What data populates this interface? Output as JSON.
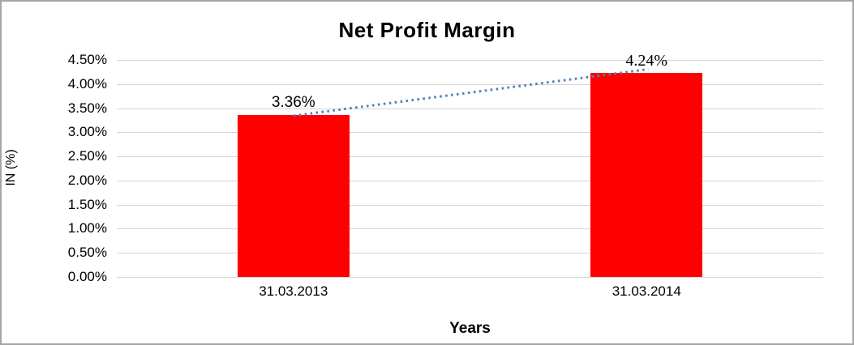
{
  "chart_data": {
    "type": "bar",
    "title": "Net Profit Margin",
    "categories": [
      "31.03.2013",
      "31.03.2014"
    ],
    "values": [
      3.36,
      4.24
    ],
    "value_labels": [
      "3.36%",
      "4.24%"
    ],
    "series": [
      {
        "name": "Net Profit Margin",
        "values": [
          3.36,
          4.24
        ]
      }
    ],
    "xlabel": "Years",
    "ylabel": "IN (%)",
    "ylim": [
      0,
      4.5
    ],
    "ytick_step": 0.5,
    "ytick_labels": [
      "0.00%",
      "0.50%",
      "1.00%",
      "1.50%",
      "2.00%",
      "2.50%",
      "3.00%",
      "3.50%",
      "4.00%",
      "4.50%"
    ],
    "grid": true,
    "legend": "none",
    "bar_color": "#ff0000",
    "gridline_color": "#d6d6d6",
    "trendline": {
      "type": "linear",
      "style": "dotted",
      "color": "#4f81bd"
    }
  }
}
